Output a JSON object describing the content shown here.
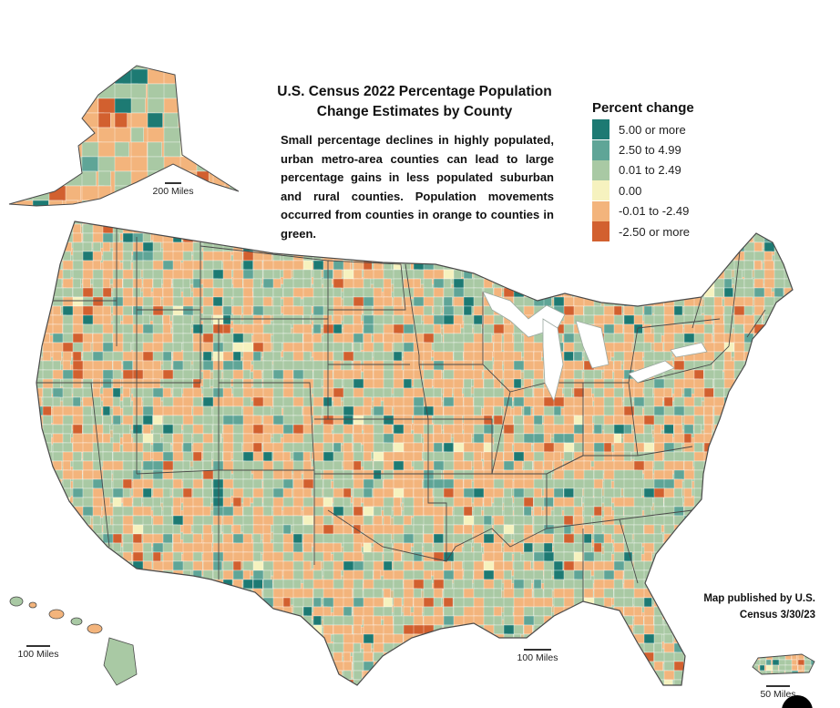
{
  "title": {
    "line1": "U.S. Census 2022 Percentage Population",
    "line2": "Change Estimates by County"
  },
  "description": "Small percentage declines in highly populated, urban metro-area counties can lead to large percentage gains in less populated suburban and rural counties. Population movements occurred from counties in orange to counties in green.",
  "legend": {
    "title": "Percent change",
    "items": [
      {
        "label": "5.00 or more",
        "color": "#1d7a73"
      },
      {
        "label": "2.50 to 4.99",
        "color": "#5fa597"
      },
      {
        "label": "0.01 to 2.49",
        "color": "#a9c9a4"
      },
      {
        "label": "0.00",
        "color": "#f6f2bf"
      },
      {
        "label": "-0.01 to -2.49",
        "color": "#f3b47c"
      },
      {
        "label": "-2.50 or more",
        "color": "#d2602f"
      }
    ]
  },
  "scales": {
    "alaska": "200 Miles",
    "hawaii": "100 Miles",
    "contiguous": "100 Miles",
    "puerto_rico": "50 Miles"
  },
  "credit": {
    "line1": "Map published by U.S.",
    "line2": "Census 3/30/23"
  },
  "colors": {
    "state_border": "#4a4a4a",
    "county_border": "#ffffff"
  }
}
